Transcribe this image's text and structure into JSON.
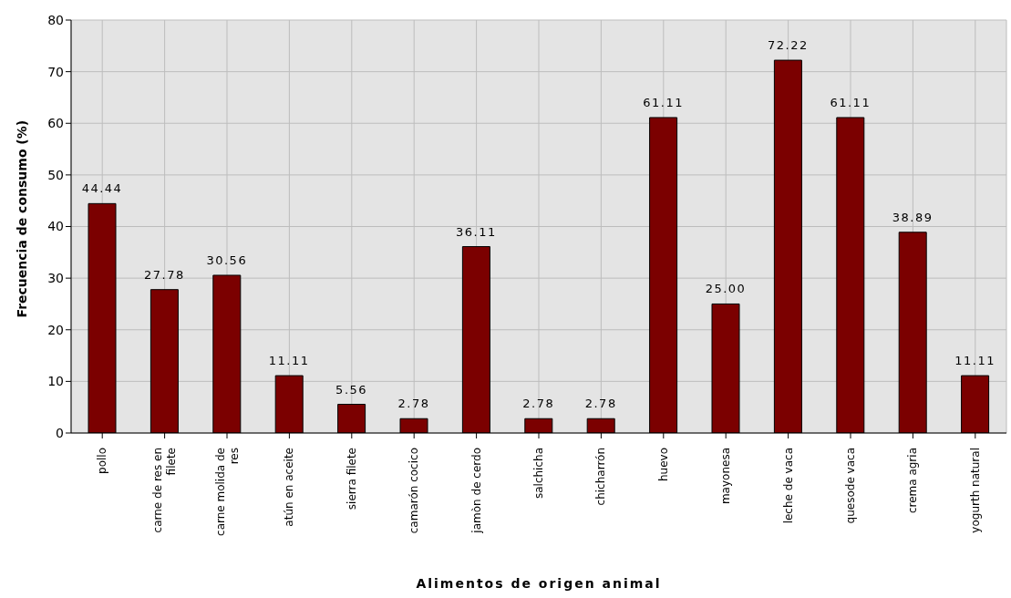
{
  "chart_data": {
    "type": "bar",
    "xlabel": "Alimentos de origen animal",
    "ylabel": "Frecuencia de consumo (%)",
    "categories": [
      "pollo",
      "carne de res en filete",
      "carne molida de res",
      "atún en aceite",
      "sierra filete",
      "camarón cocico",
      "jamòn de cerdo",
      "salchicha",
      "chicharrón",
      "huevo",
      "mayonesa",
      "leche de vaca",
      "quesode vaca",
      "crema agria",
      "yogurth natural"
    ],
    "values": [
      44.44,
      27.78,
      30.56,
      11.11,
      5.56,
      2.78,
      36.11,
      2.78,
      2.78,
      61.11,
      25.0,
      72.22,
      61.11,
      38.89,
      11.11
    ],
    "value_labels": [
      "44.44",
      "27.78",
      "30.56",
      "11.11",
      "5.56",
      "2.78",
      "36.11",
      "2.78",
      "2.78",
      "61.11",
      "25.00",
      "72.22",
      "61.11",
      "38.89",
      "11.11"
    ],
    "color": "#7b0000",
    "ylim": [
      0,
      80
    ],
    "yticks": [
      0,
      10,
      20,
      30,
      40,
      50,
      60,
      70,
      80
    ],
    "grid": true
  }
}
